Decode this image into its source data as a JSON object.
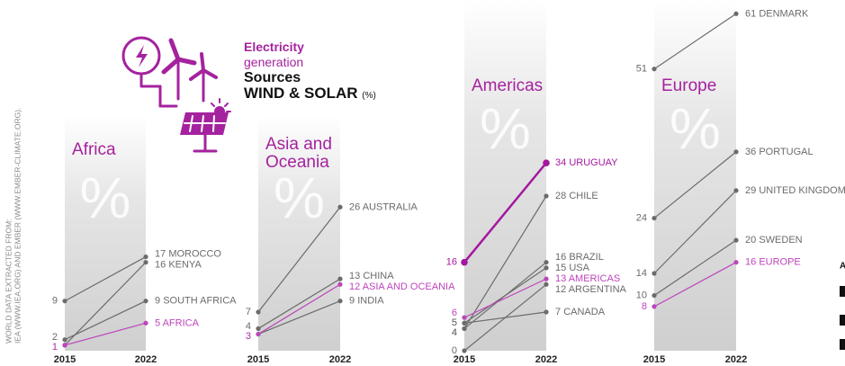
{
  "header": {
    "line1": "Electricity",
    "line2": "generation",
    "line3": "Sources",
    "line4": "WIND & SOLAR",
    "unit": "(%)"
  },
  "source": [
    "WORLD DATA EXTRACTED FROM:",
    "IEA (WWW.IEA.ORG) AND EMBER (WWW.EMBER-CLIMATE.ORG)."
  ],
  "watermark": "%",
  "edge_text": "A",
  "chart_data": [
    {
      "type": "line",
      "title": "Africa",
      "x": [
        "2015",
        "2022"
      ],
      "ylim": [
        0,
        63
      ],
      "series": [
        {
          "name": "MOROCCO",
          "color": "#6b6b6b",
          "values": [
            9,
            17
          ]
        },
        {
          "name": "KENYA",
          "color": "#6b6b6b",
          "values": [
            1,
            16
          ]
        },
        {
          "name": "SOUTH AFRICA",
          "color": "#6b6b6b",
          "values": [
            2,
            9
          ]
        },
        {
          "name": "AFRICA",
          "color": "#bd45bb",
          "values": [
            1,
            5
          ]
        }
      ]
    },
    {
      "type": "line",
      "title": "Asia and Oceania",
      "x": [
        "2015",
        "2022"
      ],
      "ylim": [
        0,
        63
      ],
      "series": [
        {
          "name": "AUSTRALIA",
          "color": "#6b6b6b",
          "values": [
            7,
            26
          ]
        },
        {
          "name": "CHINA",
          "color": "#6b6b6b",
          "values": [
            4,
            13
          ]
        },
        {
          "name": "INDIA",
          "color": "#6b6b6b",
          "values": [
            3,
            9
          ]
        },
        {
          "name": "ASIA AND OCEANIA",
          "color": "#bd45bb",
          "values": [
            3,
            12
          ]
        }
      ]
    },
    {
      "type": "line",
      "title": "Americas",
      "x": [
        "2015",
        "2022"
      ],
      "ylim": [
        0,
        63
      ],
      "series": [
        {
          "name": "CHILE",
          "color": "#6b6b6b",
          "values": [
            4,
            28
          ]
        },
        {
          "name": "BRAZIL",
          "color": "#6b6b6b",
          "values": [
            4,
            16
          ]
        },
        {
          "name": "USA",
          "color": "#6b6b6b",
          "values": [
            5,
            15
          ]
        },
        {
          "name": "ARGENTINA",
          "color": "#6b6b6b",
          "values": [
            0,
            12
          ]
        },
        {
          "name": "CANADA",
          "color": "#6b6b6b",
          "values": [
            5,
            7
          ]
        },
        {
          "name": "AMERICAS",
          "color": "#bd45bb",
          "values": [
            6,
            13
          ]
        },
        {
          "name": "URUGUAY",
          "color": "#a3189f",
          "line_width": 2.5,
          "values": [
            16,
            34
          ]
        }
      ]
    },
    {
      "type": "line",
      "title": "Europe",
      "x": [
        "2015",
        "2022"
      ],
      "ylim": [
        0,
        63
      ],
      "series": [
        {
          "name": "DENMARK",
          "color": "#6b6b6b",
          "values": [
            51,
            61
          ]
        },
        {
          "name": "PORTUGAL",
          "color": "#6b6b6b",
          "values": [
            24,
            36
          ]
        },
        {
          "name": "UNITED KINGDOM",
          "color": "#6b6b6b",
          "values": [
            14,
            29
          ]
        },
        {
          "name": "SWEDEN",
          "color": "#6b6b6b",
          "values": [
            10,
            20
          ]
        },
        {
          "name": "EUROPE",
          "color": "#bd45bb",
          "values": [
            8,
            16
          ]
        }
      ]
    }
  ]
}
